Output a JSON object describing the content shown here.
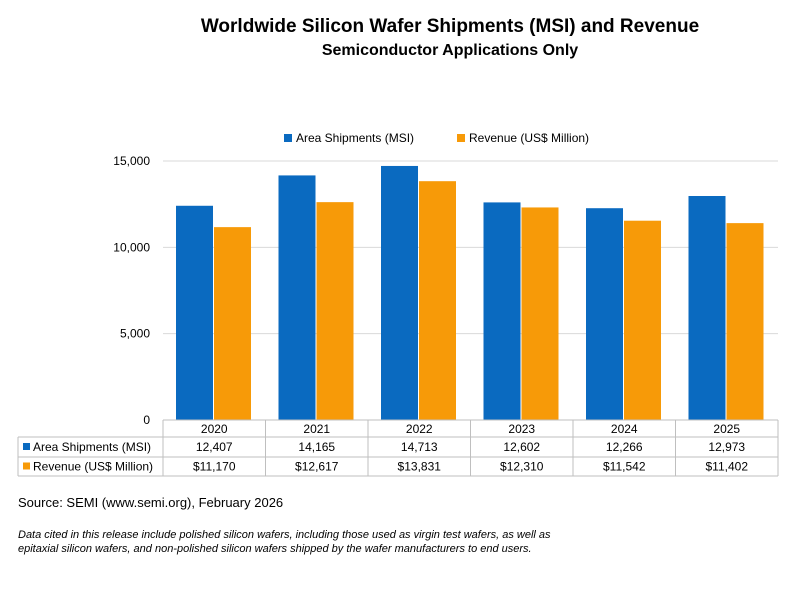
{
  "title": "Worldwide Silicon Wafer Shipments (MSI) and Revenue",
  "subtitle": "Semiconductor Applications Only",
  "source": "Source: SEMI (www.semi.org), February 2026",
  "note": "Data cited in this release include polished silicon wafers, including those used as virgin test wafers, as well as epitaxial silicon wafers, and non-polished silicon wafers shipped by the wafer manufacturers to end users.",
  "colors": {
    "series1": "#0A6AC0",
    "series2": "#F79A08",
    "grid": "#D9D9D9",
    "border": "#BFBFBF"
  },
  "chart_data": {
    "type": "bar",
    "title": "Worldwide Silicon Wafer Shipments (MSI) and Revenue",
    "subtitle": "Semiconductor Applications Only",
    "categories": [
      "2020",
      "2021",
      "2022",
      "2023",
      "2024",
      "2025"
    ],
    "series": [
      {
        "name": "Area Shipments (MSI)",
        "values": [
          12407,
          14165,
          14713,
          12602,
          12266,
          12973
        ],
        "labels": [
          "12,407",
          "14,165",
          "14,713",
          "12,602",
          "12,266",
          "12,973"
        ]
      },
      {
        "name": "Revenue (US$ Million)",
        "values": [
          11170,
          12617,
          13831,
          12310,
          11542,
          11402
        ],
        "labels": [
          "$11,170",
          "$12,617",
          "$13,831",
          "$12,310",
          "$11,542",
          "$11,402"
        ]
      }
    ],
    "ylim": [
      0,
      15000
    ],
    "yticks": [
      0,
      5000,
      10000,
      15000
    ],
    "ytick_labels": [
      "0",
      "5,000",
      "10,000",
      "15,000"
    ],
    "legend": "top",
    "grid": true,
    "data_table": true
  }
}
